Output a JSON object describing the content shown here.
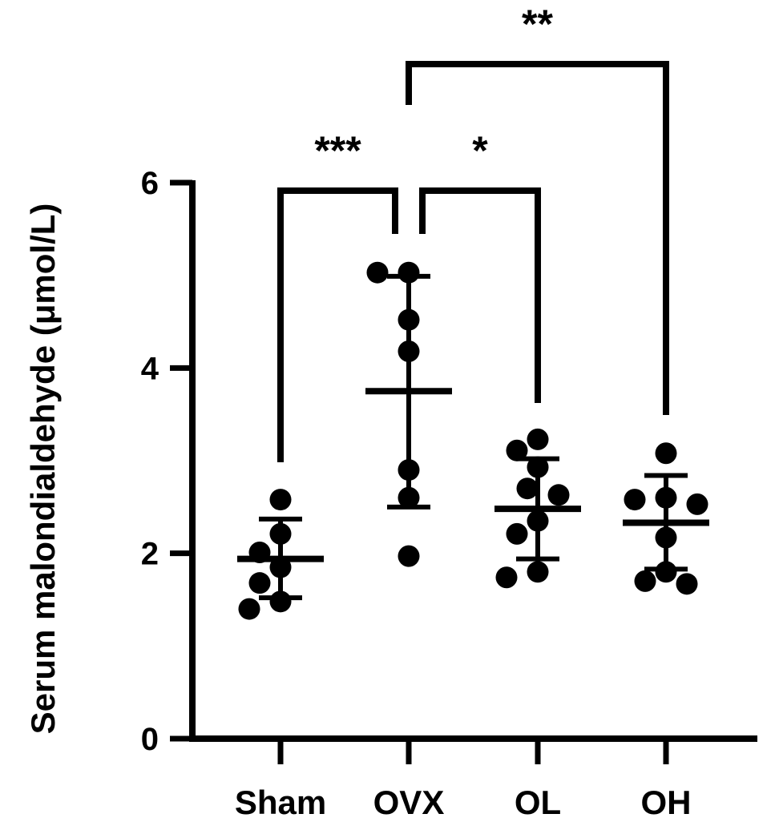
{
  "chart_data": {
    "type": "scatter",
    "title": "",
    "xlabel": "",
    "ylabel": "Serum malondialdehyde (μmol/L)",
    "ylim": [
      0,
      6
    ],
    "yticks": [
      0,
      2,
      4,
      6
    ],
    "categories": [
      "Sham",
      "OVX",
      "OL",
      "OH"
    ],
    "groups": [
      {
        "name": "Sham",
        "mean": 1.94,
        "sd_low": 1.52,
        "sd_high": 2.37,
        "points": [
          2.58,
          2.21,
          2.01,
          1.85,
          1.68,
          1.48,
          1.4
        ]
      },
      {
        "name": "OVX",
        "mean": 3.75,
        "sd_low": 2.5,
        "sd_high": 4.99,
        "points": [
          5.03,
          5.03,
          4.52,
          4.18,
          2.9,
          2.6,
          1.97
        ]
      },
      {
        "name": "OL",
        "mean": 2.48,
        "sd_low": 1.94,
        "sd_high": 3.02,
        "points": [
          3.23,
          3.11,
          2.93,
          2.7,
          2.63,
          2.35,
          2.21,
          1.8,
          1.74
        ]
      },
      {
        "name": "OH",
        "mean": 2.33,
        "sd_low": 1.83,
        "sd_high": 2.84,
        "points": [
          3.08,
          2.6,
          2.58,
          2.53,
          2.17,
          1.8,
          1.7,
          1.67
        ]
      }
    ],
    "comparisons": [
      {
        "from": "Sham",
        "to": "OVX",
        "label": "***"
      },
      {
        "from": "OVX",
        "to": "OL",
        "label": "*"
      },
      {
        "from": "OVX",
        "to": "OH",
        "label": "**"
      }
    ],
    "grid": false,
    "legend": "none"
  }
}
